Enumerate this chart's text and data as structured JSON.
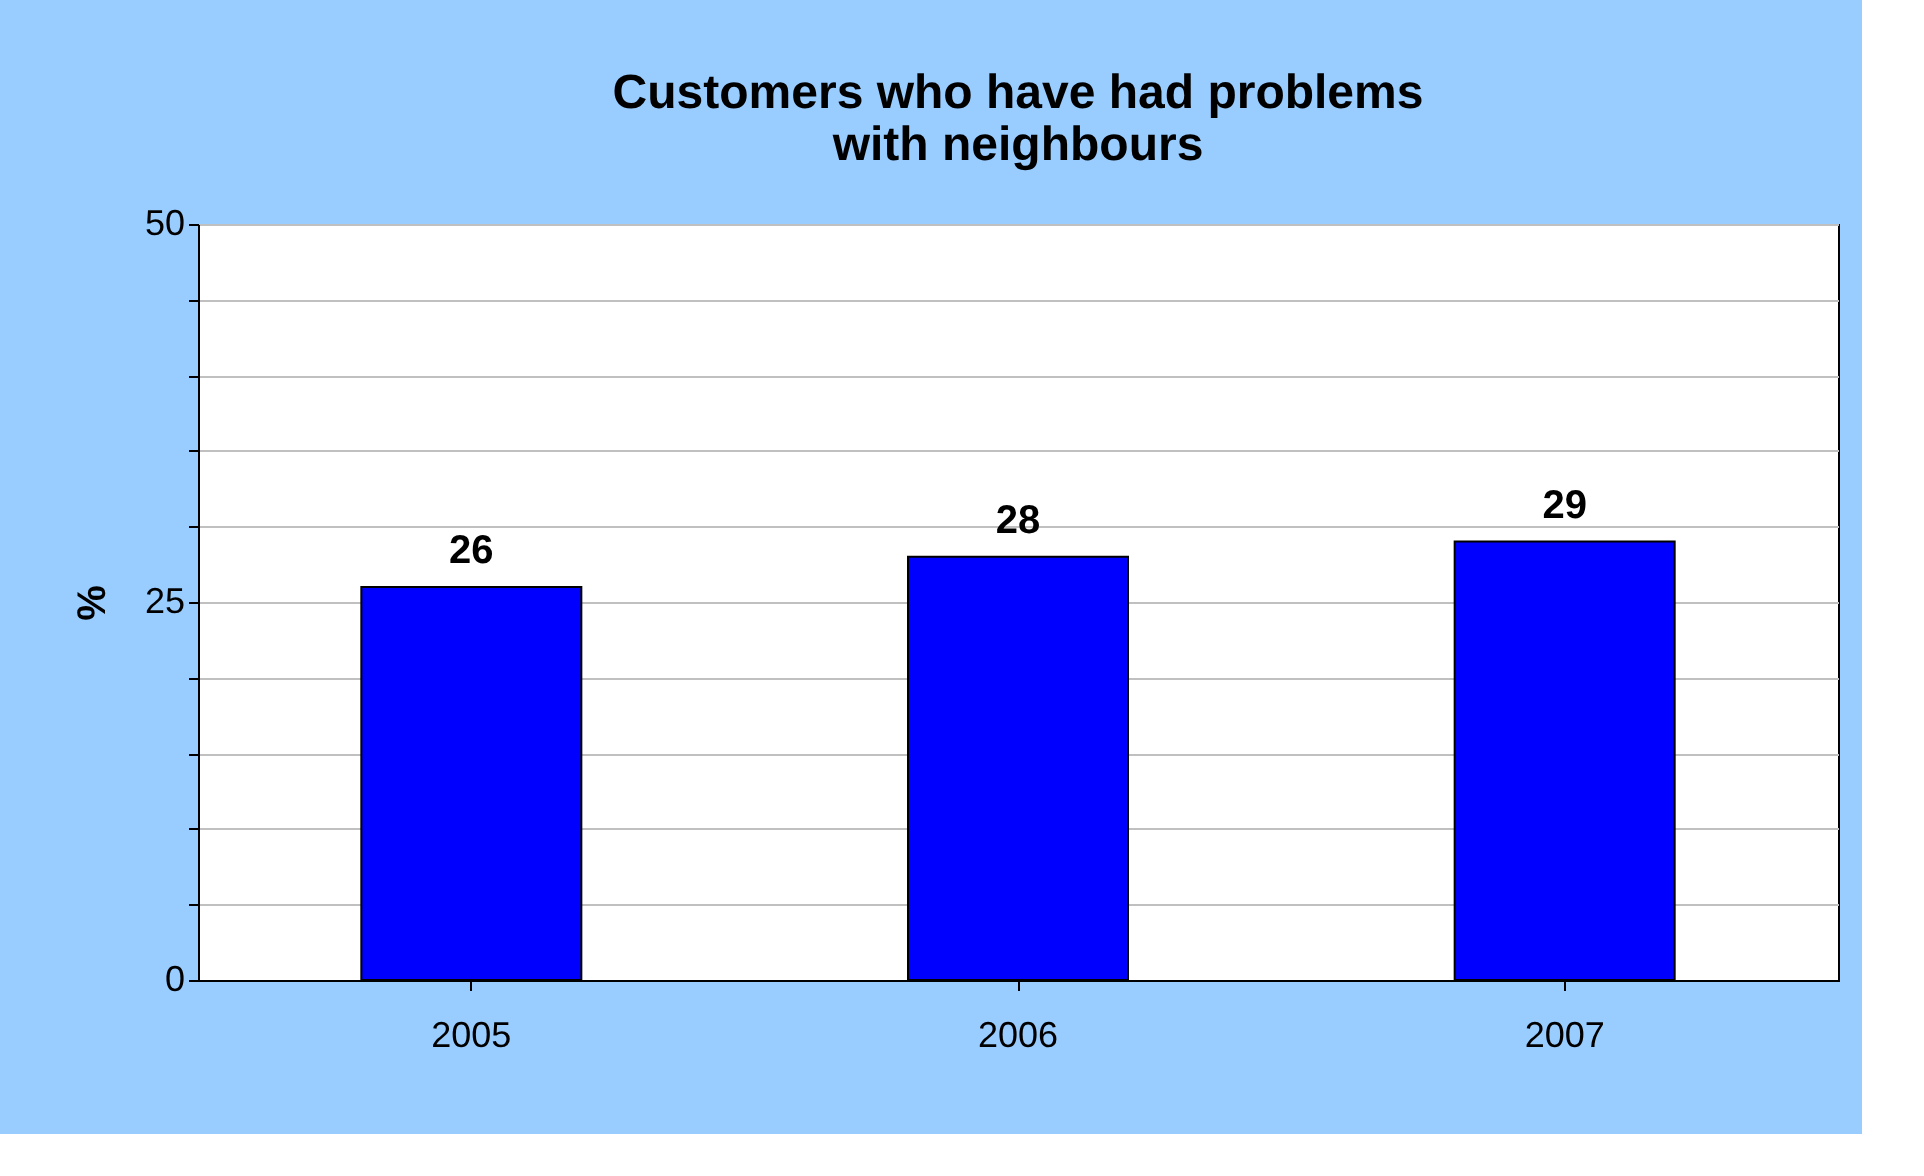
{
  "chart_data": {
    "type": "bar",
    "title": [
      "Customers who have had problems",
      "with neighbours"
    ],
    "ylabel": "%",
    "categories": [
      "2005",
      "2006",
      "2007"
    ],
    "values": [
      26,
      28,
      29
    ],
    "color": "#0000ff",
    "ylim": [
      0,
      50
    ],
    "yticks": [
      0,
      {
        "value": 5,
        "label": null
      },
      {
        "value": 10,
        "label": null
      },
      {
        "value": 15,
        "label": null
      },
      {
        "value": 20,
        "label": null
      },
      25,
      {
        "value": 30,
        "label": null
      },
      {
        "value": 35,
        "label": null
      },
      {
        "value": 40,
        "label": null
      },
      {
        "value": 45,
        "label": null
      },
      50
    ],
    "grid": true,
    "data_labels": true
  }
}
